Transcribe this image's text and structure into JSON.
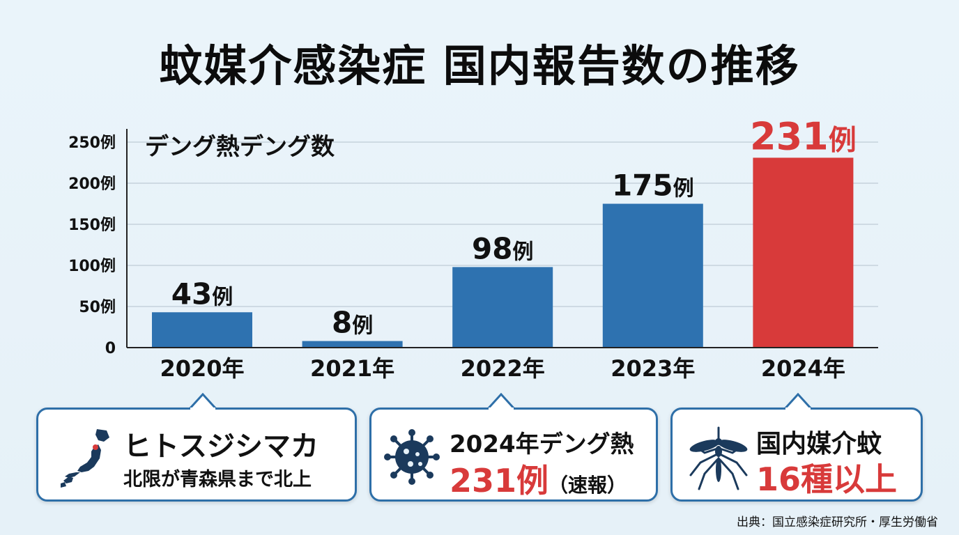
{
  "title": "蚊媒介感染症 国内報告数の推移",
  "chart_data": {
    "type": "bar",
    "title": "デング熱デング数",
    "categories": [
      "2020年",
      "2021年",
      "2022年",
      "2023年",
      "2024年"
    ],
    "values": [
      43,
      8,
      98,
      175,
      231
    ],
    "data_labels": [
      "43例",
      "8例",
      "98例",
      "175例",
      "231例"
    ],
    "yticks": [
      "0",
      "50例",
      "100例",
      "150例",
      "200例",
      "250例"
    ],
    "ylim": [
      0,
      250
    ],
    "grid": true,
    "colors": {
      "default": "#2e72b0",
      "highlight": "#d83a3a",
      "highlight_index": 4
    }
  },
  "callouts": [
    {
      "line1": "ヒトスジシマカ",
      "line2": "北限が青森県まで北上",
      "icon": "japan-map-icon"
    },
    {
      "line1": "2024年デング熱",
      "line2_value": "231例",
      "line2_note": "（速報）",
      "icon": "virus-icon"
    },
    {
      "line1": "国内媒介蚊",
      "line2": "16種以上",
      "icon": "mosquito-icon"
    }
  ],
  "source": "出典：国立感染症研究所・厚生労働省"
}
